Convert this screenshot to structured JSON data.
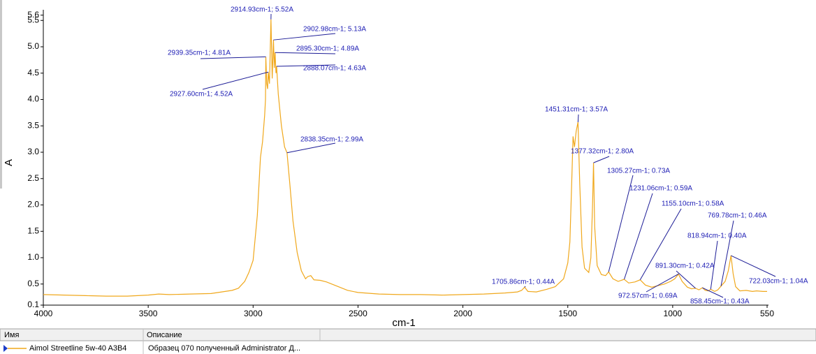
{
  "chart_data": {
    "type": "line",
    "xlabel": "cm-1",
    "ylabel": "A",
    "xlim": [
      4000,
      550
    ],
    "xticks": [
      4000,
      3500,
      3000,
      2500,
      2000,
      1500,
      1000,
      550
    ],
    "ylim": [
      0.1,
      5.6
    ],
    "yticks": [
      0.1,
      0.5,
      {
        "value": 1,
        "label": "1.0"
      },
      1.5,
      {
        "value": 2,
        "label": "2.0"
      },
      2.5,
      {
        "value": 3,
        "label": "3.0"
      },
      3.5,
      {
        "value": 4,
        "label": "4.0"
      },
      4.5,
      {
        "value": 5,
        "label": "5.0"
      },
      5.5,
      5.6
    ],
    "x": [
      4000,
      3900,
      3800,
      3700,
      3600,
      3500,
      3450,
      3400,
      3300,
      3200,
      3150,
      3100,
      3070,
      3040,
      3020,
      3000,
      2980,
      2965,
      2955,
      2945,
      2941,
      2939.35,
      2935,
      2931,
      2927.6,
      2922,
      2914.93,
      2909,
      2902.98,
      2899,
      2895.3,
      2891,
      2888.07,
      2880,
      2865,
      2850,
      2838.35,
      2825,
      2810,
      2790,
      2770,
      2750,
      2740,
      2725,
      2710,
      2680,
      2650,
      2600,
      2550,
      2500,
      2400,
      2300,
      2200,
      2100,
      2000,
      1900,
      1800,
      1740,
      1720,
      1705.86,
      1690,
      1650,
      1600,
      1560,
      1520,
      1500,
      1490,
      1480,
      1475,
      1468,
      1460,
      1451.31,
      1443,
      1432,
      1420,
      1400,
      1390,
      1382,
      1377.32,
      1372,
      1360,
      1340,
      1320,
      1305.27,
      1285,
      1260,
      1231.06,
      1210,
      1180,
      1155.1,
      1130,
      1100,
      1070,
      1040,
      1010,
      990,
      972.57,
      955,
      930,
      910,
      891.3,
      875,
      858.45,
      845,
      830,
      818.94,
      800,
      785,
      769.78,
      750,
      735,
      722.03,
      712,
      700,
      680,
      650,
      620,
      600,
      570,
      550
    ],
    "series": [
      {
        "name": "Aimol Streetline 5w-40 A3B4",
        "description": "Образец 070 полученный Administrator Д...",
        "color": "#f0a81c",
        "values": [
          0.3,
          0.29,
          0.28,
          0.27,
          0.27,
          0.29,
          0.31,
          0.3,
          0.31,
          0.32,
          0.35,
          0.38,
          0.42,
          0.55,
          0.72,
          0.95,
          1.8,
          2.9,
          3.2,
          3.7,
          4.0,
          4.81,
          4.3,
          4.2,
          4.52,
          4.3,
          5.52,
          4.4,
          5.13,
          4.6,
          4.89,
          4.5,
          4.63,
          4.1,
          3.5,
          3.1,
          2.99,
          2.4,
          1.7,
          1.1,
          0.75,
          0.6,
          0.64,
          0.66,
          0.58,
          0.57,
          0.54,
          0.46,
          0.38,
          0.34,
          0.31,
          0.3,
          0.3,
          0.29,
          0.3,
          0.31,
          0.33,
          0.35,
          0.38,
          0.44,
          0.36,
          0.35,
          0.4,
          0.45,
          0.6,
          0.9,
          1.3,
          2.6,
          3.3,
          3.1,
          3.4,
          3.57,
          2.4,
          1.2,
          0.8,
          0.72,
          1.0,
          2.0,
          2.8,
          1.6,
          0.85,
          0.68,
          0.66,
          0.73,
          0.6,
          0.55,
          0.59,
          0.52,
          0.54,
          0.58,
          0.48,
          0.44,
          0.47,
          0.5,
          0.55,
          0.6,
          0.69,
          0.55,
          0.44,
          0.41,
          0.42,
          0.39,
          0.43,
          0.38,
          0.37,
          0.4,
          0.36,
          0.39,
          0.46,
          0.55,
          0.75,
          1.04,
          0.7,
          0.45,
          0.37,
          0.38,
          0.36,
          0.37,
          0.36,
          0.36
        ]
      }
    ],
    "annotations": [
      {
        "text": "2914.93cm-1; 5.52A",
        "x": 2914.93,
        "y": 5.52
      },
      {
        "text": "2902.98cm-1; 5.13A",
        "x": 2902.98,
        "y": 5.13
      },
      {
        "text": "2895.30cm-1; 4.89A",
        "x": 2895.3,
        "y": 4.89
      },
      {
        "text": "2888.07cm-1; 4.63A",
        "x": 2888.07,
        "y": 4.63
      },
      {
        "text": "2939.35cm-1; 4.81A",
        "x": 2939.35,
        "y": 4.81
      },
      {
        "text": "2927.60cm-1; 4.52A",
        "x": 2927.6,
        "y": 4.52
      },
      {
        "text": "2838.35cm-1; 2.99A",
        "x": 2838.35,
        "y": 2.99
      },
      {
        "text": "1451.31cm-1; 3.57A",
        "x": 1451.31,
        "y": 3.57
      },
      {
        "text": "1377.32cm-1; 2.80A",
        "x": 1377.32,
        "y": 2.8
      },
      {
        "text": "1305.27cm-1; 0.73A",
        "x": 1305.27,
        "y": 0.73
      },
      {
        "text": "1231.06cm-1; 0.59A",
        "x": 1231.06,
        "y": 0.59
      },
      {
        "text": "1155.10cm-1; 0.58A",
        "x": 1155.1,
        "y": 0.58
      },
      {
        "text": "769.78cm-1; 0.46A",
        "x": 769.78,
        "y": 0.46
      },
      {
        "text": "818.94cm-1; 0.40A",
        "x": 818.94,
        "y": 0.4
      },
      {
        "text": "891.30cm-1; 0.42A",
        "x": 891.3,
        "y": 0.42
      },
      {
        "text": "1705.86cm-1; 0.44A",
        "x": 1705.86,
        "y": 0.44
      },
      {
        "text": "972.57cm-1; 0.69A",
        "x": 972.57,
        "y": 0.69
      },
      {
        "text": "858.45cm-1; 0.43A",
        "x": 858.45,
        "y": 0.43
      },
      {
        "text": "722.03cm-1; 1.04A",
        "x": 722.03,
        "y": 1.04
      }
    ],
    "legend_headers": [
      "Имя",
      "Описание"
    ]
  }
}
